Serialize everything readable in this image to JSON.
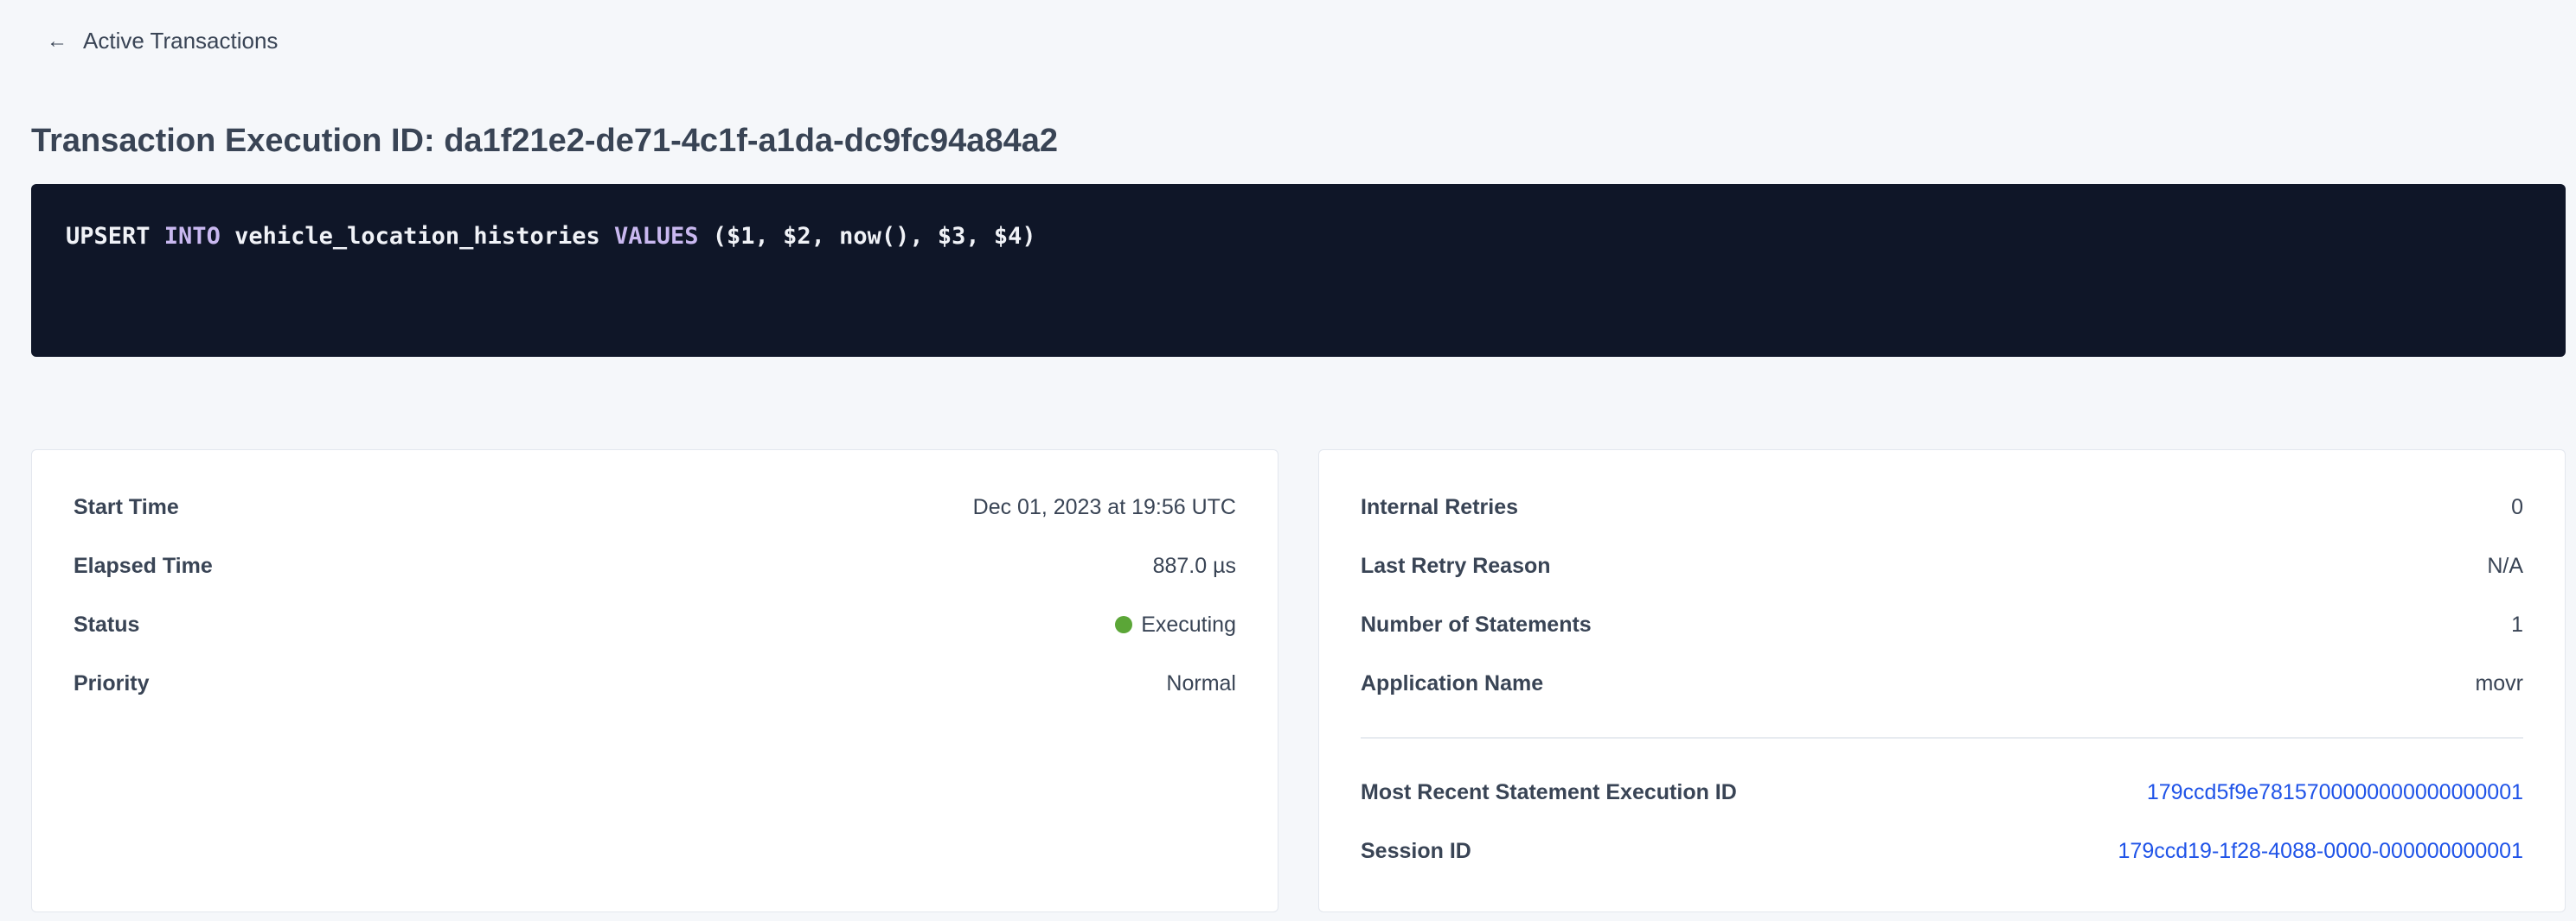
{
  "back_link": {
    "label": "Active Transactions",
    "icon": "arrow-left-icon"
  },
  "title": "Transaction Execution ID: da1f21e2-de71-4c1f-a1da-dc9fc94a84a2",
  "sql": {
    "parts": [
      {
        "text": "UPSERT ",
        "kw": false
      },
      {
        "text": "INTO",
        "kw": true
      },
      {
        "text": " vehicle_location_histories ",
        "kw": false
      },
      {
        "text": "VALUES",
        "kw": true
      },
      {
        "text": " ($1, $2, now(), $3, $4)",
        "kw": false
      }
    ]
  },
  "left_card": {
    "rows": [
      {
        "label": "Start Time",
        "value": "Dec 01, 2023 at 19:56 UTC"
      },
      {
        "label": "Elapsed Time",
        "value": "887.0 µs"
      },
      {
        "label": "Status",
        "value": "Executing",
        "status_color": "#5ba637"
      },
      {
        "label": "Priority",
        "value": "Normal"
      }
    ]
  },
  "right_card": {
    "rows": [
      {
        "label": "Internal Retries",
        "value": "0"
      },
      {
        "label": "Last Retry Reason",
        "value": "N/A"
      },
      {
        "label": "Number of Statements",
        "value": "1"
      },
      {
        "label": "Application Name",
        "value": "movr"
      }
    ],
    "links": [
      {
        "label": "Most Recent Statement Execution ID",
        "value": "179ccd5f9e7815700000000000000001"
      },
      {
        "label": "Session ID",
        "value": "179ccd19-1f28-4088-0000-000000000001"
      }
    ]
  },
  "colors": {
    "link": "#1f53e8",
    "code_bg": "#0f1628",
    "keyword": "#c9b8f0",
    "executing": "#5ba637"
  }
}
